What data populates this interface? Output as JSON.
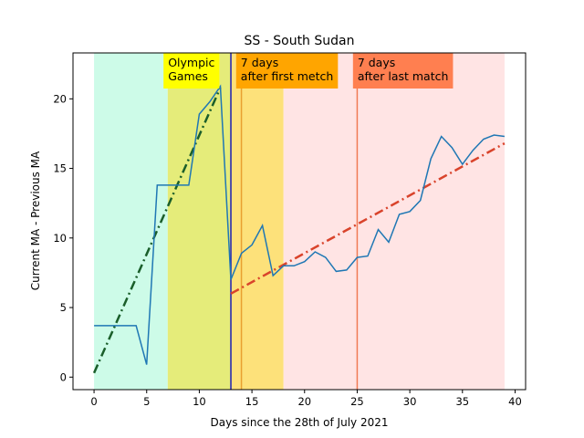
{
  "chart_data": {
    "type": "line",
    "title": "SS - South Sudan",
    "xlabel": "Days since the 28th of July 2021",
    "ylabel": "Current MA - Previous MA",
    "xlim": [
      -2,
      41
    ],
    "ylim": [
      -0.9,
      23.3
    ],
    "xticks": [
      0,
      5,
      10,
      15,
      20,
      25,
      30,
      35,
      40
    ],
    "yticks": [
      0,
      5,
      10,
      15,
      20
    ],
    "grid": false,
    "series": [
      {
        "x": [
          0,
          1,
          2,
          3,
          4,
          5,
          6,
          7,
          8,
          9,
          10,
          11,
          12,
          13,
          14,
          15,
          16,
          17,
          18,
          19,
          20,
          21,
          22,
          23,
          24,
          25,
          26,
          27,
          28,
          29,
          30,
          31,
          32,
          33,
          34,
          35,
          36,
          37,
          38,
          39
        ],
        "y": [
          3.7,
          3.7,
          3.7,
          3.7,
          3.7,
          0.9,
          13.8,
          13.8,
          13.8,
          13.8,
          18.9,
          19.8,
          20.9,
          7.0,
          8.9,
          9.5,
          10.9,
          7.3,
          8.0,
          8.0,
          8.3,
          9.0,
          8.6,
          7.6,
          7.7,
          8.6,
          8.7,
          10.6,
          9.7,
          11.7,
          11.9,
          12.7,
          15.7,
          17.3,
          16.5,
          15.3,
          16.3,
          17.1,
          17.4,
          17.3
        ],
        "color": "#1f77b4"
      }
    ],
    "trend_lines": [
      {
        "x": [
          0,
          12
        ],
        "y": [
          0.3,
          20.8
        ],
        "color": "#1a5e2a"
      },
      {
        "x": [
          13,
          39
        ],
        "y": [
          6.0,
          16.8
        ],
        "color": "#d9432b"
      }
    ],
    "regions": [
      {
        "x0": 0,
        "x1": 7,
        "color": "#cdfbe8"
      },
      {
        "x0": 7,
        "x1": 13,
        "color": "#e5ec7a"
      },
      {
        "x0": 13,
        "x1": 18,
        "color": "#fde17a"
      },
      {
        "x0": 18,
        "x1": 39,
        "color": "#ffe4e4"
      }
    ],
    "vlines": [
      {
        "x": 13,
        "color": "#1f1fb4"
      },
      {
        "x": 14,
        "color": "#e8a030"
      },
      {
        "x": 25,
        "color": "#f07a55"
      }
    ],
    "annotations": [
      {
        "lines": [
          "Olympic",
          "Games"
        ],
        "x": 6.6,
        "box_color": "#ffff00"
      },
      {
        "lines": [
          "7 days",
          "after first metch"
        ],
        "x": 13.5,
        "box_color": "#ffa500"
      },
      {
        "lines": [
          "7 days",
          "after last match"
        ],
        "x": 24.6,
        "box_color": "#ff7f50"
      }
    ]
  }
}
